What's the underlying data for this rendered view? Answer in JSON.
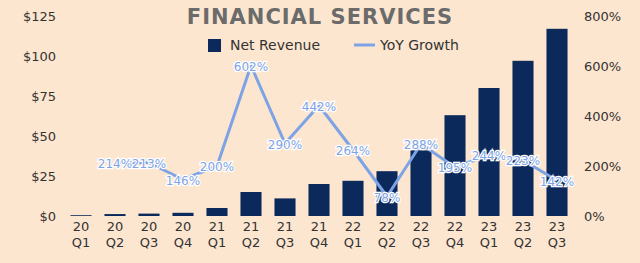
{
  "chart_data": {
    "type": "bar",
    "title": "FINANCIAL SERVICES",
    "categories": [
      "20 Q1",
      "20 Q2",
      "20 Q3",
      "20 Q4",
      "21 Q1",
      "21 Q2",
      "21 Q3",
      "21 Q4",
      "22 Q1",
      "22 Q2",
      "22 Q3",
      "22 Q4",
      "23 Q1",
      "23 Q2",
      "23 Q3"
    ],
    "series": [
      {
        "name": "Net Revenue",
        "type": "bar",
        "color": "#0b2a5b",
        "values": [
          0.5,
          1.2,
          1.5,
          2,
          5,
          15,
          11,
          20,
          22,
          28,
          41,
          63,
          80,
          97,
          117
        ]
      },
      {
        "name": "YoY Growth",
        "type": "line",
        "axis": "y2",
        "color": "#7da3e6",
        "data_labels": true,
        "values": [
          null,
          214,
          213,
          146,
          200,
          602,
          290,
          442,
          264,
          78,
          288,
          195,
          244,
          223,
          142
        ],
        "value_labels": [
          null,
          "214%",
          "213%",
          "146%",
          "200%",
          "602%",
          "290%",
          "442%",
          "264%",
          "78%",
          "288%",
          "195%",
          "244%",
          "223%",
          "142%"
        ]
      }
    ],
    "ylim": [
      0,
      125
    ],
    "yticks": [
      {
        "value": 0,
        "label": "$0"
      },
      {
        "value": 25,
        "label": "$25"
      },
      {
        "value": 50,
        "label": "$50"
      },
      {
        "value": 75,
        "label": "$75"
      },
      {
        "value": 100,
        "label": "$100"
      },
      {
        "value": 125,
        "label": "$125"
      }
    ],
    "y2lim": [
      0,
      800
    ],
    "y2ticks": [
      {
        "value": 0,
        "label": "0%"
      },
      {
        "value": 200,
        "label": "200%"
      },
      {
        "value": 400,
        "label": "400%"
      },
      {
        "value": 600,
        "label": "600%"
      },
      {
        "value": 800,
        "label": "800%"
      }
    ],
    "grid": false,
    "legend": "top"
  }
}
